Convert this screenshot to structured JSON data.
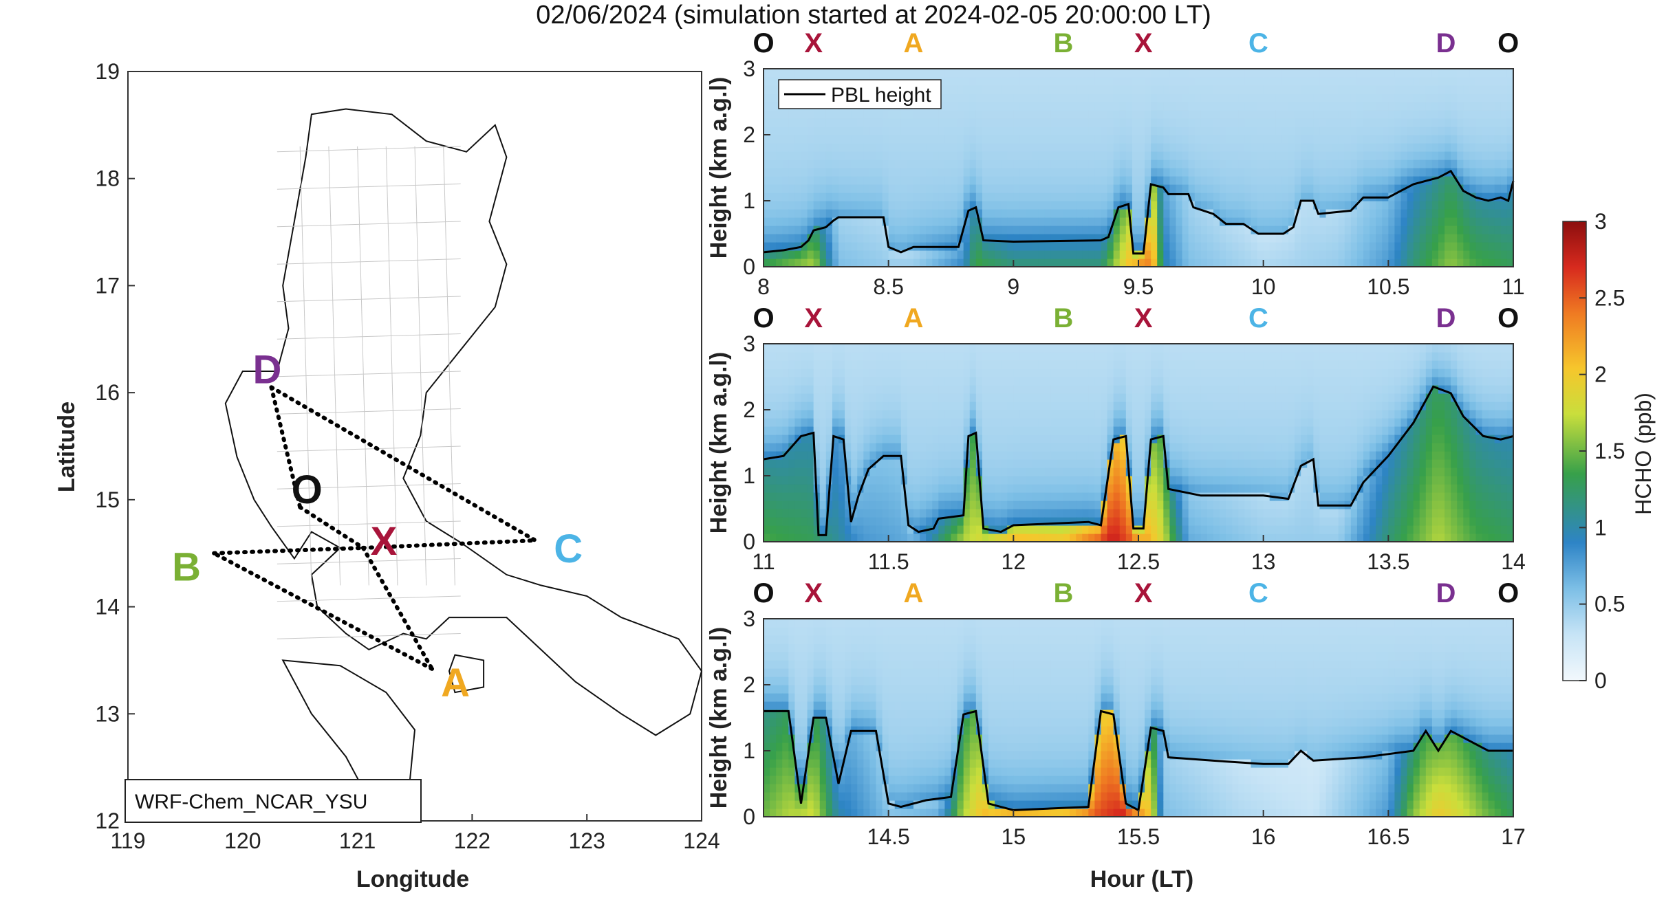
{
  "title": "02/06/2024 (simulation started at 2024-02-05 20:00:00 LT)",
  "colors": {
    "O": "#111111",
    "X": "#a8143a",
    "A": "#f0a820",
    "B": "#7ab034",
    "C": "#4cb4e6",
    "D": "#7a3090"
  },
  "colorbar": {
    "label": "HCHO (ppb)",
    "min": 0,
    "max": 3,
    "ticks": [
      "0",
      "0.5",
      "1",
      "1.5",
      "2",
      "2.5",
      "3"
    ]
  },
  "chart_data": [
    {
      "type": "map",
      "xlabel": "Longitude",
      "ylabel": "Latitude",
      "xlim": [
        119,
        124
      ],
      "ylim": [
        12,
        19
      ],
      "xticks": [
        "119",
        "120",
        "121",
        "122",
        "123",
        "124"
      ],
      "yticks": [
        "12",
        "13",
        "14",
        "15",
        "16",
        "17",
        "18",
        "19"
      ],
      "model_label": "WRF-Chem_NCAR_YSU",
      "route_label_text": {
        "O": "O",
        "X": "X",
        "A": "A",
        "B": "B",
        "C": "C",
        "D": "D"
      },
      "route_points": {
        "O": [
          120.5,
          14.93
        ],
        "X": [
          121.05,
          14.55
        ],
        "A": [
          121.65,
          13.42
        ],
        "B": [
          119.75,
          14.5
        ],
        "C": [
          122.55,
          14.62
        ],
        "D": [
          120.25,
          16.05
        ]
      },
      "route_legs": [
        [
          "D",
          "C"
        ],
        [
          "D",
          "O"
        ],
        [
          "O",
          "X"
        ],
        [
          "X",
          "A"
        ],
        [
          "A",
          "B"
        ],
        [
          "B",
          "X"
        ],
        [
          "X",
          "C"
        ]
      ]
    },
    {
      "type": "heatmap",
      "ylabel": "Height (km a.g.l)",
      "xlim": [
        8,
        11
      ],
      "ylim": [
        0,
        3
      ],
      "xticks": [
        "8",
        "8.5",
        "9",
        "9.5",
        "10",
        "10.5",
        "11"
      ],
      "yticks": [
        "0",
        "1",
        "2",
        "3"
      ],
      "legend": "PBL height",
      "route_labels": [
        {
          "t": 8.0,
          "l": "O"
        },
        {
          "t": 8.2,
          "l": "X"
        },
        {
          "t": 8.6,
          "l": "A"
        },
        {
          "t": 9.2,
          "l": "B"
        },
        {
          "t": 9.52,
          "l": "X"
        },
        {
          "t": 9.98,
          "l": "C"
        },
        {
          "t": 10.73,
          "l": "D"
        },
        {
          "t": 10.98,
          "l": "O"
        }
      ],
      "pbl": [
        [
          8.0,
          0.22
        ],
        [
          8.08,
          0.25
        ],
        [
          8.15,
          0.3
        ],
        [
          8.18,
          0.4
        ],
        [
          8.2,
          0.55
        ],
        [
          8.25,
          0.6
        ],
        [
          8.28,
          0.7
        ],
        [
          8.3,
          0.75
        ],
        [
          8.48,
          0.75
        ],
        [
          8.5,
          0.3
        ],
        [
          8.55,
          0.22
        ],
        [
          8.6,
          0.3
        ],
        [
          8.78,
          0.3
        ],
        [
          8.82,
          0.85
        ],
        [
          8.85,
          0.9
        ],
        [
          8.88,
          0.4
        ],
        [
          9.0,
          0.38
        ],
        [
          9.35,
          0.4
        ],
        [
          9.38,
          0.45
        ],
        [
          9.42,
          0.9
        ],
        [
          9.46,
          0.95
        ],
        [
          9.48,
          0.2
        ],
        [
          9.52,
          0.2
        ],
        [
          9.55,
          1.25
        ],
        [
          9.6,
          1.2
        ],
        [
          9.62,
          1.1
        ],
        [
          9.7,
          1.1
        ],
        [
          9.72,
          0.9
        ],
        [
          9.8,
          0.8
        ],
        [
          9.85,
          0.65
        ],
        [
          9.92,
          0.65
        ],
        [
          9.98,
          0.5
        ],
        [
          10.08,
          0.5
        ],
        [
          10.12,
          0.6
        ],
        [
          10.15,
          1.0
        ],
        [
          10.2,
          1.0
        ],
        [
          10.22,
          0.8
        ],
        [
          10.35,
          0.85
        ],
        [
          10.4,
          1.05
        ],
        [
          10.5,
          1.05
        ],
        [
          10.55,
          1.15
        ],
        [
          10.6,
          1.25
        ],
        [
          10.65,
          1.3
        ],
        [
          10.7,
          1.35
        ],
        [
          10.75,
          1.45
        ],
        [
          10.8,
          1.15
        ],
        [
          10.85,
          1.05
        ],
        [
          10.9,
          1.0
        ],
        [
          10.95,
          1.05
        ],
        [
          10.98,
          1.0
        ],
        [
          11.0,
          1.3
        ]
      ],
      "conc_profiles": [
        [
          8.0,
          1.4
        ],
        [
          8.2,
          1.7
        ],
        [
          8.3,
          0.6
        ],
        [
          8.5,
          0.5
        ],
        [
          8.6,
          0.5
        ],
        [
          8.8,
          0.9
        ],
        [
          8.85,
          1.4
        ],
        [
          9.0,
          1.2
        ],
        [
          9.35,
          1.2
        ],
        [
          9.45,
          2.0
        ],
        [
          9.52,
          2.5
        ],
        [
          9.56,
          2.2
        ],
        [
          9.6,
          1.0
        ],
        [
          9.7,
          0.6
        ],
        [
          10.0,
          0.4
        ],
        [
          10.3,
          0.5
        ],
        [
          10.5,
          0.8
        ],
        [
          10.6,
          1.2
        ],
        [
          10.75,
          1.6
        ],
        [
          10.85,
          1.4
        ],
        [
          11.0,
          1.3
        ]
      ]
    },
    {
      "type": "heatmap",
      "ylabel": "Height (km a.g.l)",
      "xlim": [
        11,
        14
      ],
      "ylim": [
        0,
        3
      ],
      "xticks": [
        "11",
        "11.5",
        "12",
        "12.5",
        "13",
        "13.5",
        "14"
      ],
      "yticks": [
        "0",
        "1",
        "2",
        "3"
      ],
      "route_labels": [
        {
          "t": 11.0,
          "l": "O"
        },
        {
          "t": 11.2,
          "l": "X"
        },
        {
          "t": 11.6,
          "l": "A"
        },
        {
          "t": 12.2,
          "l": "B"
        },
        {
          "t": 12.52,
          "l": "X"
        },
        {
          "t": 12.98,
          "l": "C"
        },
        {
          "t": 13.73,
          "l": "D"
        },
        {
          "t": 13.98,
          "l": "O"
        }
      ],
      "pbl": [
        [
          11.0,
          1.25
        ],
        [
          11.08,
          1.3
        ],
        [
          11.15,
          1.6
        ],
        [
          11.2,
          1.65
        ],
        [
          11.22,
          0.1
        ],
        [
          11.25,
          0.1
        ],
        [
          11.28,
          1.6
        ],
        [
          11.32,
          1.55
        ],
        [
          11.35,
          0.3
        ],
        [
          11.38,
          0.7
        ],
        [
          11.42,
          1.1
        ],
        [
          11.48,
          1.3
        ],
        [
          11.55,
          1.3
        ],
        [
          11.58,
          0.25
        ],
        [
          11.62,
          0.15
        ],
        [
          11.68,
          0.2
        ],
        [
          11.7,
          0.35
        ],
        [
          11.8,
          0.4
        ],
        [
          11.82,
          1.6
        ],
        [
          11.85,
          1.65
        ],
        [
          11.88,
          0.2
        ],
        [
          11.95,
          0.15
        ],
        [
          12.0,
          0.25
        ],
        [
          12.3,
          0.3
        ],
        [
          12.35,
          0.25
        ],
        [
          12.4,
          1.55
        ],
        [
          12.45,
          1.6
        ],
        [
          12.48,
          0.2
        ],
        [
          12.52,
          0.2
        ],
        [
          12.55,
          1.55
        ],
        [
          12.6,
          1.6
        ],
        [
          12.62,
          0.8
        ],
        [
          12.75,
          0.7
        ],
        [
          12.85,
          0.7
        ],
        [
          13.0,
          0.7
        ],
        [
          13.1,
          0.65
        ],
        [
          13.15,
          1.15
        ],
        [
          13.2,
          1.25
        ],
        [
          13.22,
          0.55
        ],
        [
          13.35,
          0.55
        ],
        [
          13.4,
          0.9
        ],
        [
          13.5,
          1.3
        ],
        [
          13.6,
          1.8
        ],
        [
          13.68,
          2.35
        ],
        [
          13.75,
          2.25
        ],
        [
          13.8,
          1.9
        ],
        [
          13.88,
          1.6
        ],
        [
          13.95,
          1.55
        ],
        [
          14.0,
          1.6
        ]
      ],
      "conc_profiles": [
        [
          11.0,
          1.4
        ],
        [
          11.2,
          1.3
        ],
        [
          11.4,
          0.8
        ],
        [
          11.6,
          0.7
        ],
        [
          11.8,
          1.7
        ],
        [
          11.9,
          1.9
        ],
        [
          12.0,
          2.2
        ],
        [
          12.2,
          2.1
        ],
        [
          12.4,
          2.8
        ],
        [
          12.5,
          2.4
        ],
        [
          12.6,
          1.8
        ],
        [
          12.7,
          0.7
        ],
        [
          13.0,
          0.5
        ],
        [
          13.3,
          0.5
        ],
        [
          13.5,
          1.2
        ],
        [
          13.7,
          1.7
        ],
        [
          13.85,
          1.4
        ],
        [
          14.0,
          1.3
        ]
      ]
    },
    {
      "type": "heatmap",
      "xlabel": "Hour (LT)",
      "ylabel": "Height (km a.g.l)",
      "xlim": [
        14,
        17
      ],
      "ylim": [
        0,
        3
      ],
      "xticks": [
        "14.5",
        "15",
        "15.5",
        "16",
        "16.5",
        "17"
      ],
      "yticks": [
        "0",
        "1",
        "2",
        "3"
      ],
      "route_labels": [
        {
          "t": 14.0,
          "l": "O"
        },
        {
          "t": 14.2,
          "l": "X"
        },
        {
          "t": 14.6,
          "l": "A"
        },
        {
          "t": 15.2,
          "l": "B"
        },
        {
          "t": 15.52,
          "l": "X"
        },
        {
          "t": 15.98,
          "l": "C"
        },
        {
          "t": 16.73,
          "l": "D"
        },
        {
          "t": 16.98,
          "l": "O"
        }
      ],
      "pbl": [
        [
          14.0,
          1.6
        ],
        [
          14.1,
          1.6
        ],
        [
          14.15,
          0.2
        ],
        [
          14.2,
          1.5
        ],
        [
          14.25,
          1.5
        ],
        [
          14.3,
          0.5
        ],
        [
          14.35,
          1.3
        ],
        [
          14.45,
          1.3
        ],
        [
          14.5,
          0.2
        ],
        [
          14.55,
          0.15
        ],
        [
          14.65,
          0.25
        ],
        [
          14.75,
          0.3
        ],
        [
          14.8,
          1.55
        ],
        [
          14.85,
          1.6
        ],
        [
          14.9,
          0.2
        ],
        [
          15.0,
          0.1
        ],
        [
          15.3,
          0.15
        ],
        [
          15.35,
          1.6
        ],
        [
          15.4,
          1.55
        ],
        [
          15.45,
          0.2
        ],
        [
          15.5,
          0.1
        ],
        [
          15.55,
          1.35
        ],
        [
          15.6,
          1.3
        ],
        [
          15.62,
          0.9
        ],
        [
          15.8,
          0.85
        ],
        [
          16.0,
          0.8
        ],
        [
          16.1,
          0.8
        ],
        [
          16.15,
          1.0
        ],
        [
          16.2,
          0.85
        ],
        [
          16.4,
          0.9
        ],
        [
          16.5,
          0.95
        ],
        [
          16.6,
          1.0
        ],
        [
          16.65,
          1.3
        ],
        [
          16.7,
          1.0
        ],
        [
          16.75,
          1.3
        ],
        [
          16.8,
          1.2
        ],
        [
          16.9,
          1.0
        ],
        [
          17.0,
          1.0
        ]
      ],
      "conc_profiles": [
        [
          14.0,
          1.5
        ],
        [
          14.1,
          1.7
        ],
        [
          14.2,
          1.8
        ],
        [
          14.3,
          1.0
        ],
        [
          14.5,
          0.6
        ],
        [
          14.7,
          0.7
        ],
        [
          14.8,
          1.7
        ],
        [
          14.9,
          2.2
        ],
        [
          15.0,
          2.3
        ],
        [
          15.2,
          2.2
        ],
        [
          15.35,
          2.6
        ],
        [
          15.45,
          2.8
        ],
        [
          15.55,
          2.0
        ],
        [
          15.6,
          0.6
        ],
        [
          15.9,
          0.4
        ],
        [
          16.2,
          0.3
        ],
        [
          16.5,
          0.8
        ],
        [
          16.6,
          1.6
        ],
        [
          16.7,
          2.0
        ],
        [
          16.8,
          1.8
        ],
        [
          16.9,
          1.5
        ],
        [
          17.0,
          1.3
        ]
      ]
    }
  ]
}
